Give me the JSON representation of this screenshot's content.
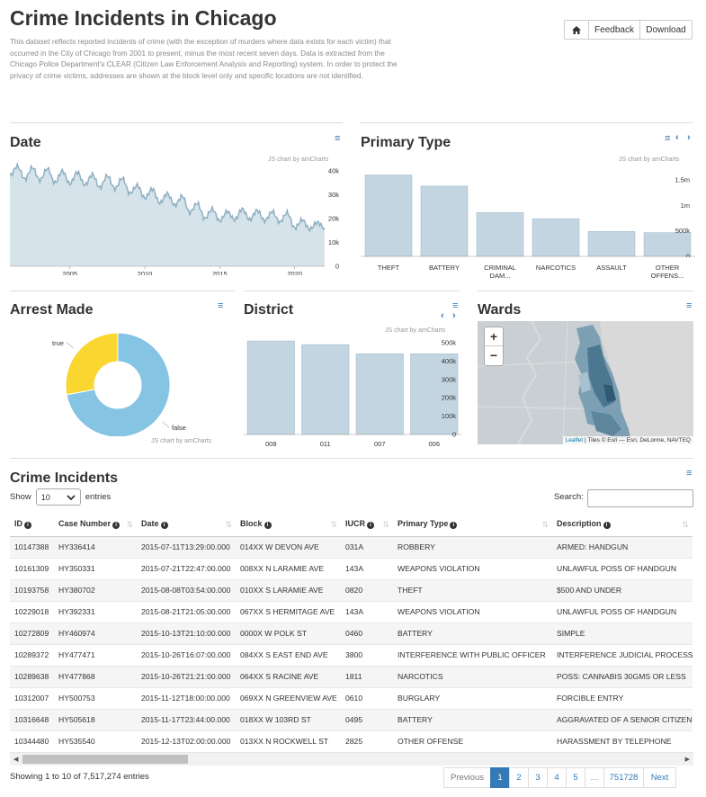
{
  "header": {
    "title": "Crime Incidents in Chicago",
    "description": "This dataset reflects reported incidents of crime (with the exception of murders where data exists for each victim) that occurred in the City of Chicago from 2001 to present, minus the most recent seven days. Data is extracted from the Chicago Police Department's CLEAR (Citizen Law Enforcement Analysis and Reporting) system. In order to protect the privacy of crime victims, addresses are shown at the block level only and specific locations are not identified.",
    "home_icon": "home-icon",
    "feedback_label": "Feedback",
    "download_label": "Download"
  },
  "panels": {
    "date": {
      "title": "Date",
      "credit": "JS chart by amCharts"
    },
    "primary_type": {
      "title": "Primary Type",
      "credit": "JS chart by amCharts"
    },
    "arrest": {
      "title": "Arrest Made",
      "credit": "JS chart by amCharts"
    },
    "district": {
      "title": "District",
      "credit": "JS chart by amCharts"
    },
    "wards": {
      "title": "Wards",
      "zoom_in": "+",
      "zoom_out": "−",
      "attribution_link": "Leaflet",
      "attribution_rest": " | Tiles © Esri — Esri, DeLorme, NAVTEQ"
    }
  },
  "chart_data": [
    {
      "type": "area",
      "title": "Date",
      "x_ticks": [
        "2005",
        "2010",
        "2015",
        "2020"
      ],
      "y_ticks": [
        "40k",
        "30k",
        "20k",
        "10k",
        "0"
      ],
      "ylim": [
        0,
        40000
      ],
      "xlim": [
        2001,
        2022
      ],
      "series": [
        {
          "values": [
            {
              "x": 2001.0,
              "y": 38000
            },
            {
              "x": 2001.5,
              "y": 42000
            },
            {
              "x": 2002.0,
              "y": 36500
            },
            {
              "x": 2002.5,
              "y": 41500
            },
            {
              "x": 2003.0,
              "y": 36000
            },
            {
              "x": 2003.5,
              "y": 41000
            },
            {
              "x": 2004.0,
              "y": 35000
            },
            {
              "x": 2004.5,
              "y": 40000
            },
            {
              "x": 2005.0,
              "y": 34500
            },
            {
              "x": 2005.5,
              "y": 39500
            },
            {
              "x": 2006.0,
              "y": 34000
            },
            {
              "x": 2006.5,
              "y": 38500
            },
            {
              "x": 2007.0,
              "y": 33000
            },
            {
              "x": 2007.5,
              "y": 38000
            },
            {
              "x": 2008.0,
              "y": 32500
            },
            {
              "x": 2008.5,
              "y": 37000
            },
            {
              "x": 2009.0,
              "y": 30500
            },
            {
              "x": 2009.5,
              "y": 34000
            },
            {
              "x": 2010.0,
              "y": 28500
            },
            {
              "x": 2010.5,
              "y": 32500
            },
            {
              "x": 2011.0,
              "y": 26500
            },
            {
              "x": 2011.5,
              "y": 30500
            },
            {
              "x": 2012.0,
              "y": 25500
            },
            {
              "x": 2012.5,
              "y": 29500
            },
            {
              "x": 2013.0,
              "y": 22500
            },
            {
              "x": 2013.5,
              "y": 26500
            },
            {
              "x": 2014.0,
              "y": 20000
            },
            {
              "x": 2014.5,
              "y": 24000
            },
            {
              "x": 2015.0,
              "y": 19000
            },
            {
              "x": 2015.5,
              "y": 23000
            },
            {
              "x": 2016.0,
              "y": 19500
            },
            {
              "x": 2016.5,
              "y": 24000
            },
            {
              "x": 2017.0,
              "y": 19500
            },
            {
              "x": 2017.5,
              "y": 23500
            },
            {
              "x": 2018.0,
              "y": 19000
            },
            {
              "x": 2018.5,
              "y": 23000
            },
            {
              "x": 2019.0,
              "y": 18500
            },
            {
              "x": 2019.5,
              "y": 22500
            },
            {
              "x": 2020.0,
              "y": 16000
            },
            {
              "x": 2020.5,
              "y": 19500
            },
            {
              "x": 2021.0,
              "y": 15500
            },
            {
              "x": 2021.5,
              "y": 18500
            },
            {
              "x": 2022.0,
              "y": 16000
            }
          ]
        }
      ]
    },
    {
      "type": "bar",
      "title": "Primary Type",
      "categories": [
        "THEFT",
        "BATTERY",
        "CRIMINAL DAM...",
        "NARCOTICS",
        "ASSAULT",
        "OTHER OFFENS..."
      ],
      "values": [
        1600000,
        1380000,
        860000,
        740000,
        490000,
        465000
      ],
      "y_ticks": [
        "1.5m",
        "1m",
        "500k",
        "0"
      ],
      "ylim": [
        0,
        1750000
      ]
    },
    {
      "type": "pie",
      "title": "Arrest Made",
      "categories": [
        "false",
        "true"
      ],
      "values": [
        72,
        28
      ],
      "colors": [
        "#85c4e3",
        "#fad630"
      ]
    },
    {
      "type": "bar",
      "title": "District",
      "categories": [
        "008",
        "011",
        "007",
        "006"
      ],
      "values": [
        510000,
        490000,
        440000,
        440000
      ],
      "y_ticks": [
        "500k",
        "400k",
        "300k",
        "200k",
        "100k",
        "0"
      ],
      "ylim": [
        0,
        520000
      ]
    }
  ],
  "table": {
    "title": "Crime Incidents",
    "show_label": "Show",
    "entries_label": "entries",
    "page_size": "10",
    "search_label": "Search:",
    "columns": [
      "ID",
      "Case Number",
      "Date",
      "Block",
      "IUCR",
      "Primary Type",
      "Description"
    ],
    "rows": [
      [
        "10147388",
        "HY336414",
        "2015-07-11T13:29:00.000",
        "014XX W DEVON AVE",
        "031A",
        "ROBBERY",
        "ARMED: HANDGUN"
      ],
      [
        "10161309",
        "HY350331",
        "2015-07-21T22:47:00.000",
        "008XX N LARAMIE AVE",
        "143A",
        "WEAPONS VIOLATION",
        "UNLAWFUL POSS OF HANDGUN"
      ],
      [
        "10193758",
        "HY380702",
        "2015-08-08T03:54:00.000",
        "010XX S LARAMIE AVE",
        "0820",
        "THEFT",
        "$500 AND UNDER"
      ],
      [
        "10229018",
        "HY392331",
        "2015-08-21T21:05:00.000",
        "067XX S HERMITAGE AVE",
        "143A",
        "WEAPONS VIOLATION",
        "UNLAWFUL POSS OF HANDGUN"
      ],
      [
        "10272809",
        "HY460974",
        "2015-10-13T21:10:00.000",
        "0000X W POLK ST",
        "0460",
        "BATTERY",
        "SIMPLE"
      ],
      [
        "10289372",
        "HY477471",
        "2015-10-26T16:07:00.000",
        "084XX S EAST END AVE",
        "3800",
        "INTERFERENCE WITH PUBLIC OFFICER",
        "INTERFERENCE JUDICIAL PROCESS"
      ],
      [
        "10289638",
        "HY477868",
        "2015-10-26T21:21:00.000",
        "064XX S RACINE AVE",
        "1811",
        "NARCOTICS",
        "POSS: CANNABIS 30GMS OR LESS"
      ],
      [
        "10312007",
        "HY500753",
        "2015-11-12T18:00:00.000",
        "069XX N GREENVIEW AVE",
        "0610",
        "BURGLARY",
        "FORCIBLE ENTRY"
      ],
      [
        "10316648",
        "HY505618",
        "2015-11-17T23:44:00.000",
        "018XX W 103RD ST",
        "0495",
        "BATTERY",
        "AGGRAVATED OF A SENIOR CITIZEN"
      ],
      [
        "10344480",
        "HY535540",
        "2015-12-13T02:00:00.000",
        "013XX N ROCKWELL ST",
        "2825",
        "OTHER OFFENSE",
        "HARASSMENT BY TELEPHONE"
      ]
    ],
    "info": "Showing 1 to 10 of 7,517,274 entries",
    "pagination": [
      "Previous",
      "1",
      "2",
      "3",
      "4",
      "5",
      "…",
      "751728",
      "Next"
    ]
  }
}
